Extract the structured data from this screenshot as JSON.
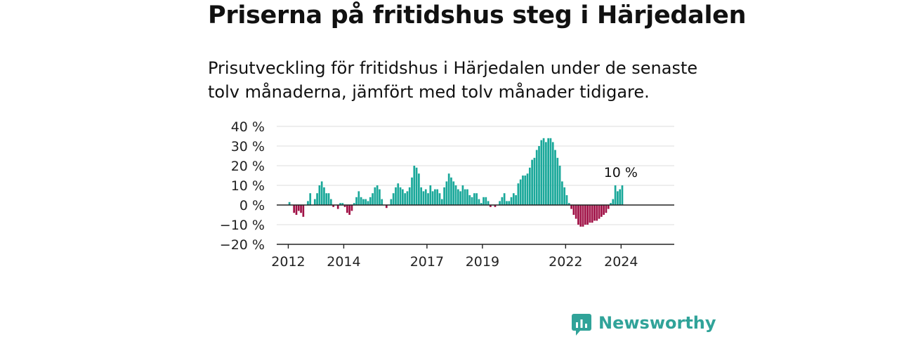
{
  "title": "Priserna på fritidshus steg i Härjedalen",
  "subtitle": "Prisutveckling för fritidshus i Härjedalen under de senaste tolv månaderna, jämfört med tolv månader tidigare.",
  "brand": {
    "name": "Newsworthy"
  },
  "colors": {
    "positive": "#1aa89a",
    "negative": "#a01146",
    "brand": "#30a399",
    "grid": "#dddddd",
    "axis": "#222222"
  },
  "chart_data": {
    "type": "bar",
    "title": "Priserna på fritidshus steg i Härjedalen",
    "xlabel": "",
    "ylabel": "",
    "ylim": [
      -20,
      40
    ],
    "yticks": [
      40,
      30,
      20,
      10,
      0,
      -10,
      -20
    ],
    "ytick_labels": [
      "40 %",
      "30 %",
      "20 %",
      "10 %",
      "0 %",
      "−10 %",
      "−20 %"
    ],
    "xticks": [
      "2012",
      "2014",
      "2017",
      "2019",
      "2022",
      "2024"
    ],
    "xaxis_start": "2011-08",
    "last_label": "10 %",
    "grid": true,
    "series": [
      {
        "start": "2012-01",
        "frequency": "monthly",
        "values": [
          1.5,
          0,
          -4,
          -5,
          -3,
          -4,
          -6,
          0,
          2,
          6,
          0,
          3,
          6,
          10,
          12,
          9,
          6,
          6,
          3,
          -1,
          0,
          -2,
          1,
          1,
          -1,
          -4,
          -5,
          -3,
          1,
          4,
          7,
          4,
          3,
          3,
          2,
          4,
          6,
          9,
          10,
          8,
          3,
          0,
          -1.5,
          0,
          3,
          6,
          9,
          11,
          9,
          8,
          6,
          7,
          9,
          14,
          20,
          19,
          16,
          9,
          7,
          8,
          6,
          10,
          7,
          8,
          8,
          6,
          3,
          9,
          12,
          16,
          14,
          12,
          10,
          8,
          7,
          10,
          8,
          8,
          5,
          4,
          6,
          6,
          3,
          1,
          4,
          4,
          2,
          -1,
          0,
          -1,
          0,
          2,
          4,
          6,
          2,
          2,
          4,
          6,
          5,
          11,
          13,
          15,
          15,
          16,
          19,
          23,
          24,
          28,
          30,
          33,
          34,
          32,
          34,
          34,
          32,
          28,
          24,
          20,
          12,
          9,
          5,
          1,
          -2,
          -5,
          -7,
          -10,
          -11,
          -11,
          -10,
          -10,
          -9,
          -9,
          -8,
          -8,
          -7,
          -6,
          -5,
          -4,
          -2,
          1,
          3,
          10,
          7,
          8,
          10
        ]
      }
    ]
  }
}
